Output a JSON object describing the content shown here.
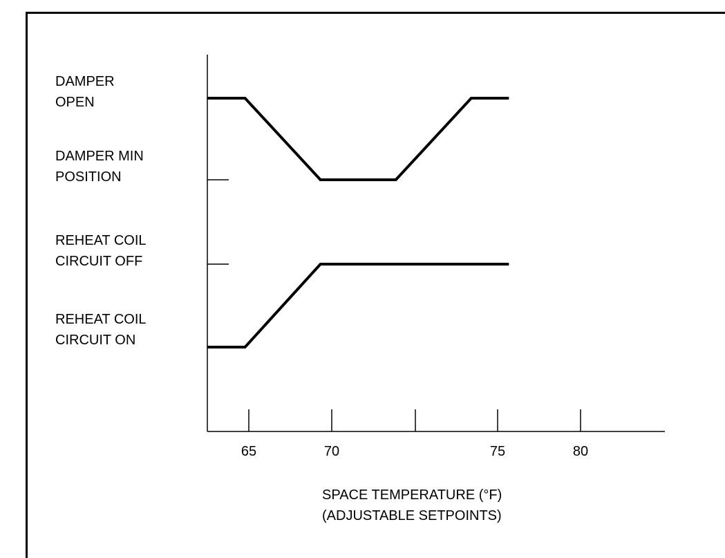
{
  "chart_data": {
    "type": "line",
    "title": "",
    "xlabel": [
      "SPACE TEMPERATURE (°F)",
      "(ADJUSTABLE SETPOINTS)"
    ],
    "ylabel": "",
    "x_ticks": [
      65,
      70,
      null,
      75,
      80
    ],
    "x_tick_labels": [
      "65",
      "70",
      "",
      "75",
      "80"
    ],
    "xlim": [
      62.5,
      90
    ],
    "y_levels": [
      {
        "key": "damper_open",
        "lines": [
          "DAMPER",
          "OPEN"
        ]
      },
      {
        "key": "damper_min",
        "lines": [
          "DAMPER MIN",
          "POSITION"
        ]
      },
      {
        "key": "reheat_off",
        "lines": [
          "REHEAT COIL",
          "CIRCUIT OFF"
        ]
      },
      {
        "key": "reheat_on",
        "lines": [
          "REHEAT COIL",
          "CIRCUIT ON"
        ]
      }
    ],
    "series": [
      {
        "key": "damper",
        "x": [
          62.5,
          65,
          70,
          75,
          80,
          82.5
        ],
        "y": [
          "damper_open",
          "damper_open",
          "damper_min",
          "damper_min",
          "damper_open",
          "damper_open"
        ]
      },
      {
        "key": "reheat",
        "x": [
          62.5,
          65,
          70,
          82.5
        ],
        "y": [
          "reheat_on",
          "reheat_on",
          "reheat_off",
          "reheat_off"
        ]
      }
    ],
    "grid": false,
    "legend": "none"
  }
}
